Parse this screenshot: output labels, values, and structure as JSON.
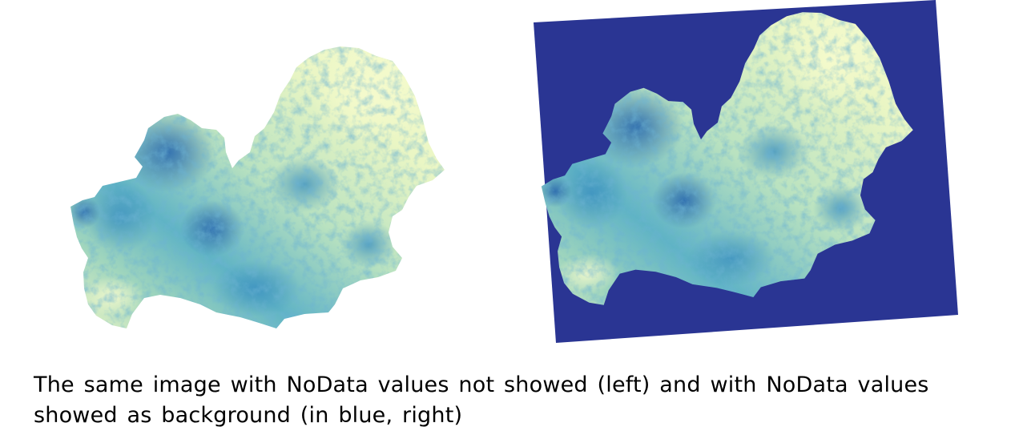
{
  "caption": {
    "line1": "The same image with NoData values not showed (left) and with NoData values",
    "line2": "showed as background (in blue, right)"
  },
  "colors": {
    "nodata_background": "#2a3593",
    "dem_low": "#f7fbc8",
    "dem_mid": "#8fd0bb",
    "dem_high": "#2c7bb6",
    "dem_peak": "#1e4f9c"
  },
  "panels": {
    "left": {
      "show_nodata": false
    },
    "right": {
      "show_nodata": true
    }
  }
}
